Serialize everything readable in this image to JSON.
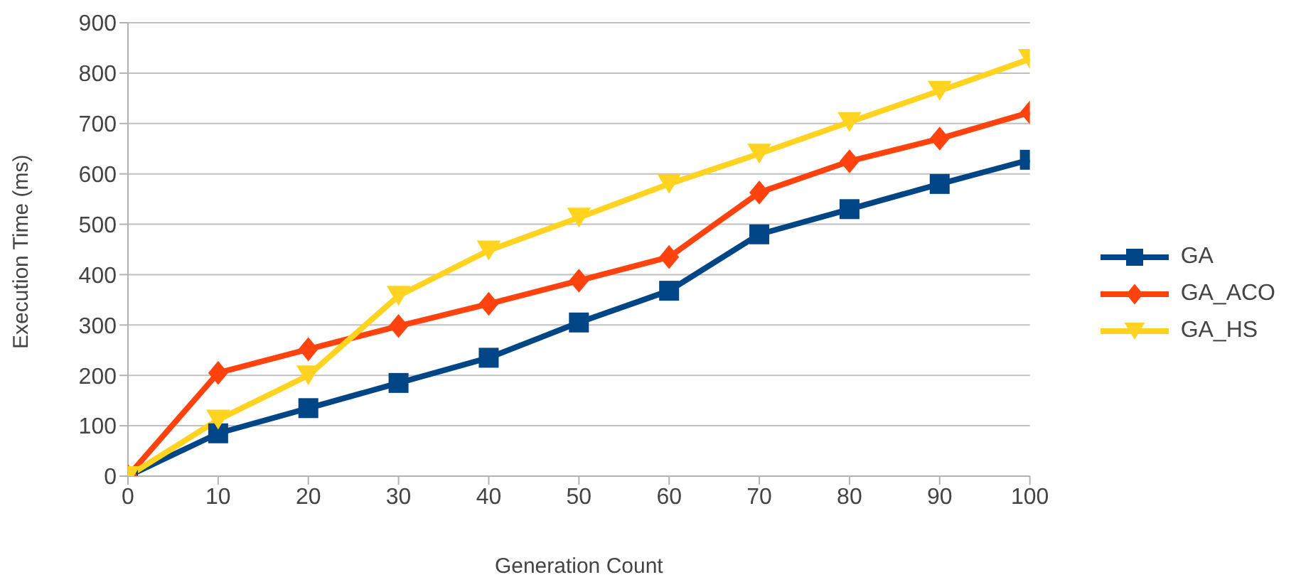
{
  "chart_data": {
    "type": "line",
    "xlabel": "Generation Count",
    "ylabel": "Execution Time (ms)",
    "x": [
      0,
      10,
      20,
      30,
      40,
      50,
      60,
      70,
      80,
      90,
      100
    ],
    "series": [
      {
        "name": "GA",
        "color": "#004586",
        "marker": "square",
        "values": [
          0,
          85,
          135,
          185,
          235,
          305,
          368,
          480,
          530,
          580,
          628
        ]
      },
      {
        "name": "GA_ACO",
        "color": "#ff420e",
        "marker": "diamond",
        "values": [
          0,
          205,
          252,
          298,
          342,
          388,
          435,
          563,
          625,
          670,
          722
        ]
      },
      {
        "name": "GA_HS",
        "color": "#ffd320",
        "marker": "triangle-down",
        "values": [
          0,
          112,
          200,
          358,
          448,
          513,
          580,
          640,
          703,
          765,
          828
        ]
      }
    ],
    "xlim": [
      0,
      100
    ],
    "xticks": [
      0,
      10,
      20,
      30,
      40,
      50,
      60,
      70,
      80,
      90,
      100
    ],
    "ylim": [
      0,
      900
    ],
    "yticks": [
      0,
      100,
      200,
      300,
      400,
      500,
      600,
      700,
      800,
      900
    ],
    "grid": "y",
    "legend": "right"
  }
}
